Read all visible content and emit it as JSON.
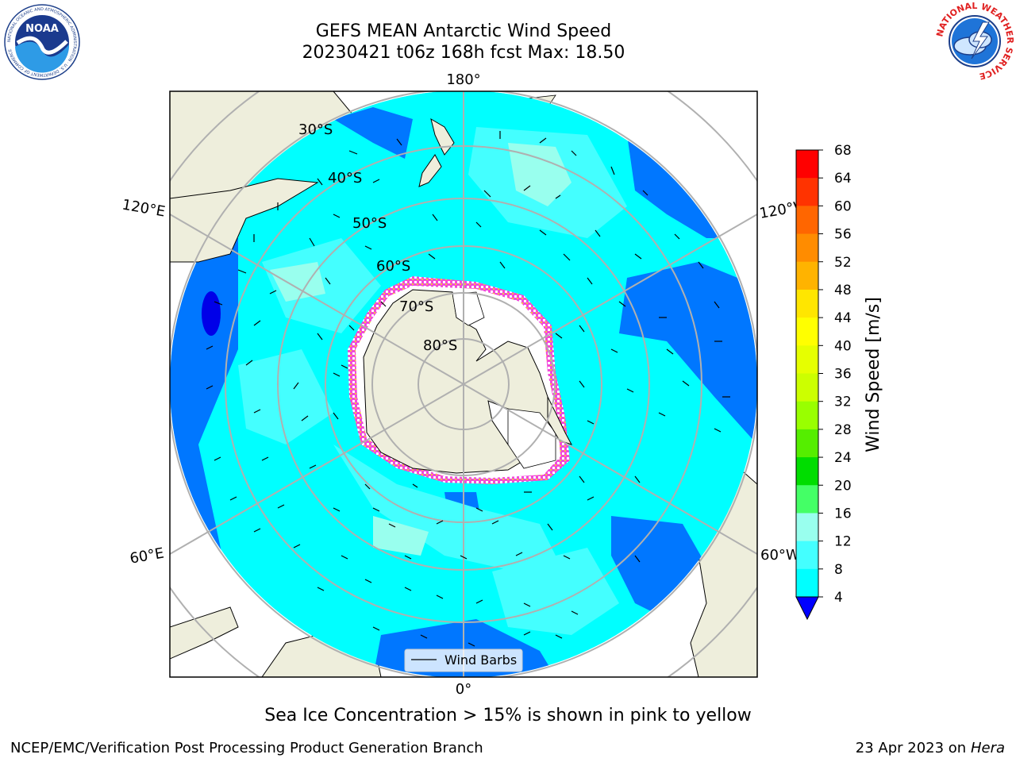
{
  "title_line1": "GEFS MEAN Antarctic Wind Speed",
  "title_line2": "20230421 t06z 168h fcst   Max: 18.50",
  "noaa_logo_text": "NOAA",
  "noaa_ring_text": "NATIONAL OCEANIC AND ATMOSPHERIC ADMINISTRATION · U.S. DEPARTMENT OF COMMERCE",
  "nws_ring_text": "NATIONAL WEATHER SERVICE",
  "map": {
    "longitude_labels": [
      "180°",
      "120°E",
      "120°W",
      "60°E",
      "60°W",
      "0°"
    ],
    "latitude_labels": [
      "30°S",
      "40°S",
      "50°S",
      "60°S",
      "70°S",
      "80°S"
    ],
    "legend_label": "Wind Barbs"
  },
  "colorbar": {
    "label": "Wind Speed [m/s]",
    "ticks": [
      "68",
      "64",
      "60",
      "56",
      "52",
      "48",
      "44",
      "40",
      "36",
      "32",
      "28",
      "24",
      "20",
      "16",
      "12",
      "8",
      "4"
    ],
    "colors": [
      "#ff0000",
      "#ff3300",
      "#ff6600",
      "#ff8c00",
      "#ffb300",
      "#ffe600",
      "#ffff00",
      "#e6ff00",
      "#ccff00",
      "#99ff00",
      "#55ee00",
      "#00dd00",
      "#44ff66",
      "#99ffee",
      "#44ffff",
      "#00ffff",
      "#0077ff"
    ]
  },
  "sea_ice_note": "Sea Ice Concentration > 15% is shown in pink to yellow",
  "footer_left": "NCEP/EMC/Verification Post Processing Product Generation Branch",
  "footer_right_date": "23 Apr 2023 on ",
  "footer_right_host": "Hera"
}
